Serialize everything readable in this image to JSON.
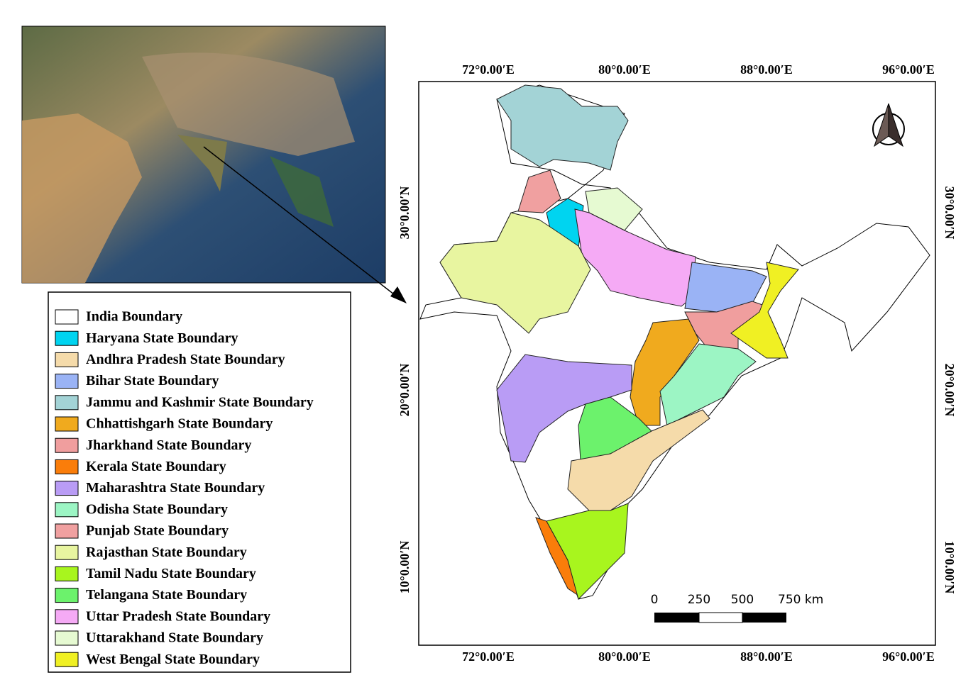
{
  "legend": {
    "items": [
      {
        "label": "India Boundary",
        "color": "#ffffff"
      },
      {
        "label": "Haryana State Boundary",
        "color": "#00d4f0"
      },
      {
        "label": "Andhra Pradesh State Boundary",
        "color": "#f5dbaa"
      },
      {
        "label": "Bihar State Boundary",
        "color": "#9ab3f5"
      },
      {
        "label": "Jammu and Kashmir State Boundary",
        "color": "#a3d3d6"
      },
      {
        "label": "Chhattishgarh State Boundary",
        "color": "#f0aa1e"
      },
      {
        "label": "Jharkhand State Boundary",
        "color": "#f09e9e"
      },
      {
        "label": "Kerala State Boundary",
        "color": "#fa7d0a"
      },
      {
        "label": "Maharashtra State Boundary",
        "color": "#b99cf5"
      },
      {
        "label": "Odisha State Boundary",
        "color": "#9cf5c4"
      },
      {
        "label": "Punjab State Boundary",
        "color": "#f0a0a0"
      },
      {
        "label": "Rajasthan State Boundary",
        "color": "#e8f5a0"
      },
      {
        "label": "Tamil Nadu State Boundary",
        "color": "#a8f51e"
      },
      {
        "label": "Telangana State Boundary",
        "color": "#6cf26c"
      },
      {
        "label": "Uttar Pradesh State Boundary",
        "color": "#f5aaf5"
      },
      {
        "label": "Uttarakhand State Boundary",
        "color": "#e6fad2"
      },
      {
        "label": "West Bengal State Boundary",
        "color": "#f0f023"
      }
    ]
  },
  "map": {
    "top_labels": [
      "72°0.00′E",
      "80°0.00′E",
      "88°0.00′E",
      "96°0.00′E"
    ],
    "bottom_labels": [
      "72°0.00′E",
      "80°0.00′E",
      "88°0.00′E",
      "96°0.00′E"
    ],
    "left_labels": [
      "30°0.00′N",
      "20°0.00′N",
      "10°0.00′N"
    ],
    "right_labels": [
      "30°0.00′N",
      "20°0.00′N",
      "10°0.00′N"
    ],
    "scale_bar": {
      "labels": [
        "0",
        "250",
        "500",
        "750 km"
      ]
    }
  }
}
